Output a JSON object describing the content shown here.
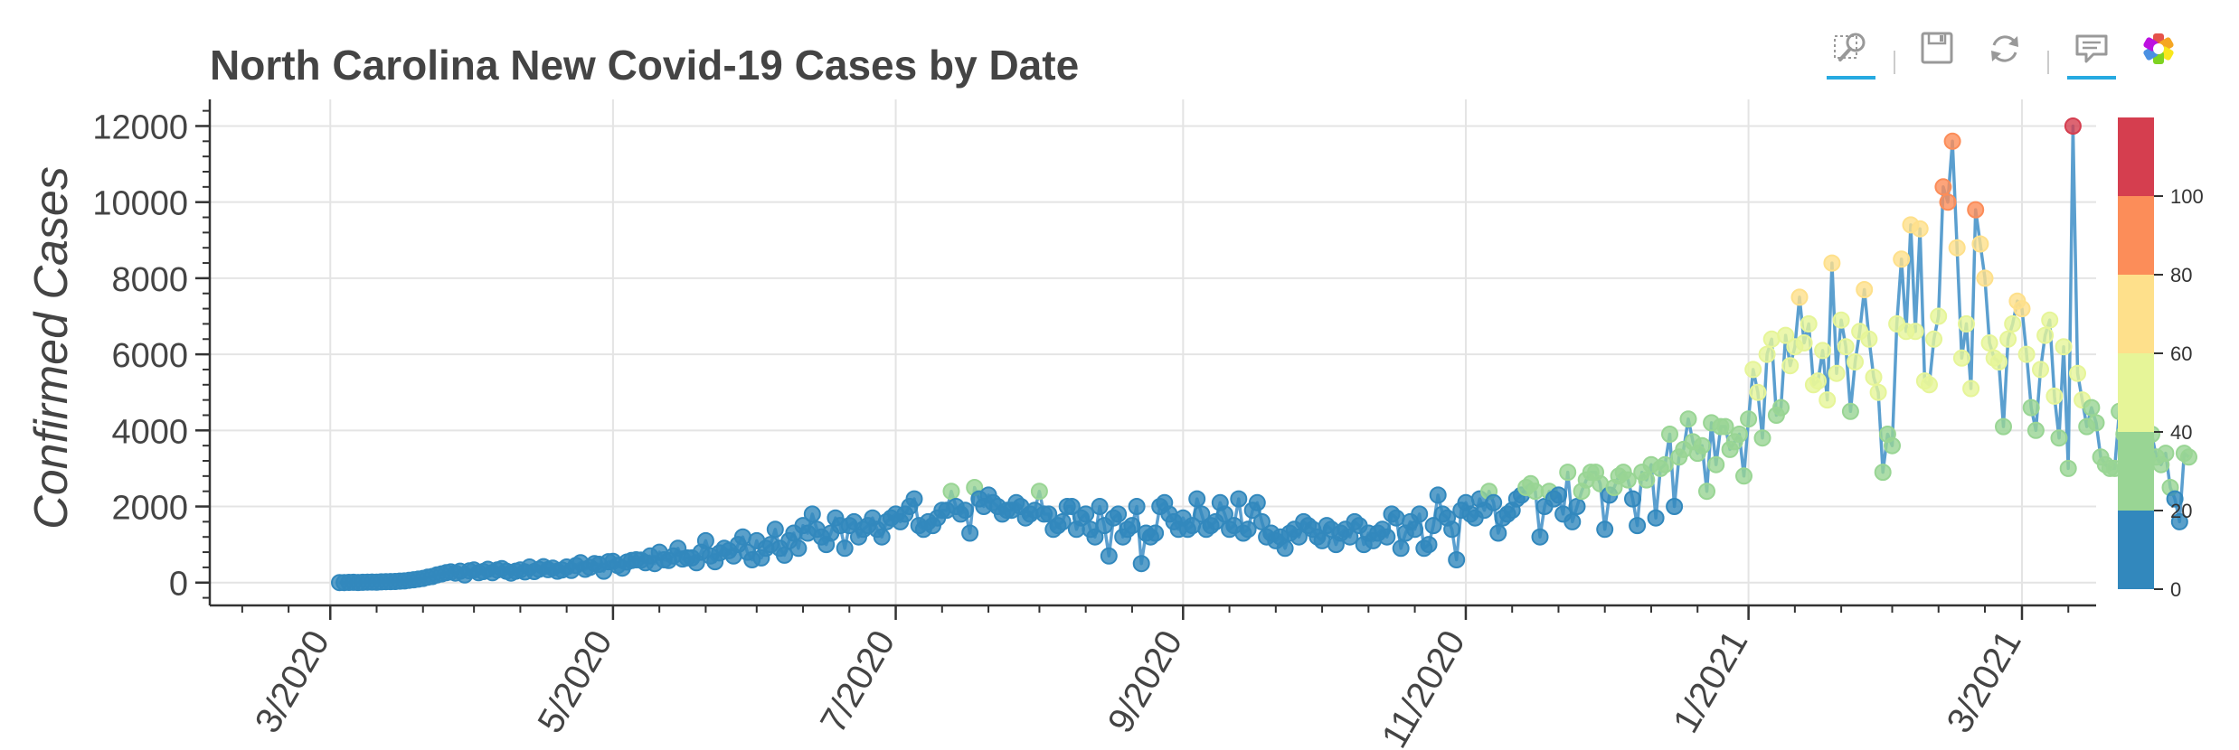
{
  "toolbar": {
    "tools": [
      {
        "icon": "box-zoom-icon",
        "active": true
      },
      {
        "icon": "save-icon",
        "active": false
      },
      {
        "icon": "reset-icon",
        "active": false
      },
      {
        "icon": "hover-tooltip-icon",
        "active": true
      },
      {
        "icon": "bokeh-logo-icon",
        "active": false
      }
    ]
  },
  "chart_data": {
    "type": "scatter",
    "title": "North Carolina New Covid-19 Cases by Date",
    "xlabel": "",
    "ylabel": "Confirmed Cases",
    "x_range": [
      "2020-02-04",
      "2021-03-17"
    ],
    "ylim": [
      -600,
      12700
    ],
    "x_ticks": [
      {
        "date": "2020-03-01",
        "label": "3/2020"
      },
      {
        "date": "2020-05-01",
        "label": "5/2020"
      },
      {
        "date": "2020-07-01",
        "label": "7/2020"
      },
      {
        "date": "2020-09-01",
        "label": "9/2020"
      },
      {
        "date": "2020-11-01",
        "label": "11/2020"
      },
      {
        "date": "2021-01-01",
        "label": "1/2021"
      },
      {
        "date": "2021-03-01",
        "label": "3/2021"
      }
    ],
    "y_ticks": [
      0,
      2000,
      4000,
      6000,
      8000,
      10000,
      12000
    ],
    "grid": true,
    "line_color": "#5b9fcf",
    "start_date": "2020-03-03",
    "series": [
      {
        "values": [
          2,
          0,
          5,
          7,
          3,
          8,
          12,
          15,
          10,
          20,
          25,
          28,
          30,
          40,
          44,
          60,
          75,
          90,
          110,
          140,
          160,
          200,
          230,
          260,
          280,
          250,
          300,
          200,
          310,
          330,
          260,
          290,
          350,
          260,
          330,
          370,
          300,
          250,
          300,
          330,
          280,
          410,
          290,
          350,
          420,
          340,
          380,
          300,
          330,
          410,
          320,
          450,
          520,
          350,
          400,
          500,
          480,
          300,
          550,
          560,
          450,
          380,
          540,
          580,
          600,
          590,
          520,
          700,
          500,
          800,
          600,
          580,
          700,
          900,
          620,
          650,
          650,
          520,
          800,
          1100,
          700,
          550,
          780,
          900,
          840,
          700,
          1000,
          1200,
          800,
          600,
          1100,
          650,
          900,
          1000,
          1400,
          900,
          720,
          1100,
          1300,
          900,
          1500,
          1300,
          1800,
          1400,
          1200,
          1000,
          1300,
          1700,
          1500,
          900,
          1500,
          1600,
          1200,
          1400,
          1500,
          1700,
          1400,
          1200,
          1600,
          1700,
          1800,
          1600,
          1800,
          2000,
          2200,
          1500,
          1400,
          1600,
          1500,
          1700,
          1900,
          1900,
          2400,
          2000,
          1800,
          1900,
          1300,
          2500,
          2200,
          2000,
          2300,
          2100,
          2000,
          1800,
          1900,
          1900,
          2100,
          2000,
          1700,
          1800,
          1900,
          2400,
          1800,
          1800,
          1400,
          1500,
          1600,
          2000,
          2000,
          1400,
          1700,
          1800,
          1400,
          1200,
          2000,
          1500,
          700,
          1700,
          1800,
          1200,
          1400,
          1500,
          2000,
          500,
          1300,
          1200,
          1300,
          2000,
          2100,
          1800,
          1600,
          1400,
          1700,
          1400,
          1500,
          2200,
          1800,
          1400,
          1500,
          1600,
          2100,
          1800,
          1400,
          1500,
          2200,
          1300,
          1400,
          1900,
          2100,
          1600,
          1200,
          1300,
          1100,
          1200,
          900,
          1300,
          1400,
          1200,
          1600,
          1500,
          1400,
          1200,
          1100,
          1500,
          1400,
          1000,
          1300,
          1400,
          1200,
          1600,
          1500,
          1000,
          1300,
          1100,
          1300,
          1400,
          1200,
          1800,
          1700,
          900,
          1300,
          1600,
          1400,
          1800,
          900,
          1000,
          1500,
          2300,
          1800,
          1700,
          1400,
          600,
          1900,
          2100,
          1800,
          1700,
          2200,
          1900,
          2400,
          2100,
          1300,
          1700,
          1800,
          1900,
          2200,
          2300,
          2500,
          2600,
          2400,
          1200,
          2000,
          2400,
          2200,
          2300,
          1800,
          2900,
          1600,
          2000,
          2400,
          2700,
          2900,
          2900,
          2600,
          1400,
          2300,
          2500,
          2800,
          2900,
          2700,
          2200,
          1500,
          2900,
          2700,
          3100,
          1700,
          3000,
          3100,
          3900,
          2000,
          3300,
          3500,
          4300,
          3700,
          3400,
          3600,
          2400,
          4200,
          3100,
          4100,
          4100,
          3500,
          3700,
          3900,
          2800,
          4300,
          5600,
          5000,
          3800,
          6000,
          6400,
          4400,
          4600,
          6500,
          5700,
          6200,
          7500,
          6300,
          6800,
          5200,
          5300,
          6100,
          4800,
          8400,
          5500,
          6900,
          6200,
          4500,
          5800,
          6600,
          7700,
          6400,
          5400,
          5000,
          2900,
          3900,
          3600,
          6800,
          8500,
          6600,
          9400,
          6600,
          9300,
          5300,
          5200,
          6400,
          7000,
          10400,
          10000,
          11600,
          8800,
          5900,
          6800,
          5100,
          9800,
          8900,
          8000,
          6300,
          5900,
          5800,
          4100,
          6400,
          6800,
          7400,
          7200,
          6000,
          4600,
          4000,
          5600,
          6500,
          6900,
          4900,
          3800,
          6200,
          3000,
          12000,
          5500,
          4800,
          4100,
          4600,
          4200,
          3300,
          3100,
          3000,
          3000,
          4500,
          3900,
          4100,
          3100,
          2500,
          2000,
          3300,
          3900,
          3300,
          3100,
          3400,
          2500,
          2200,
          1600,
          3400,
          3300
        ]
      }
    ],
    "color_map": {
      "title": "",
      "ticks": [
        0,
        20,
        40,
        60,
        80,
        100
      ],
      "colors": [
        "#3288bd",
        "#99d594",
        "#e6f598",
        "#fee08b",
        "#fc8d59",
        "#d53e4f"
      ],
      "range": [
        0,
        120
      ]
    }
  }
}
